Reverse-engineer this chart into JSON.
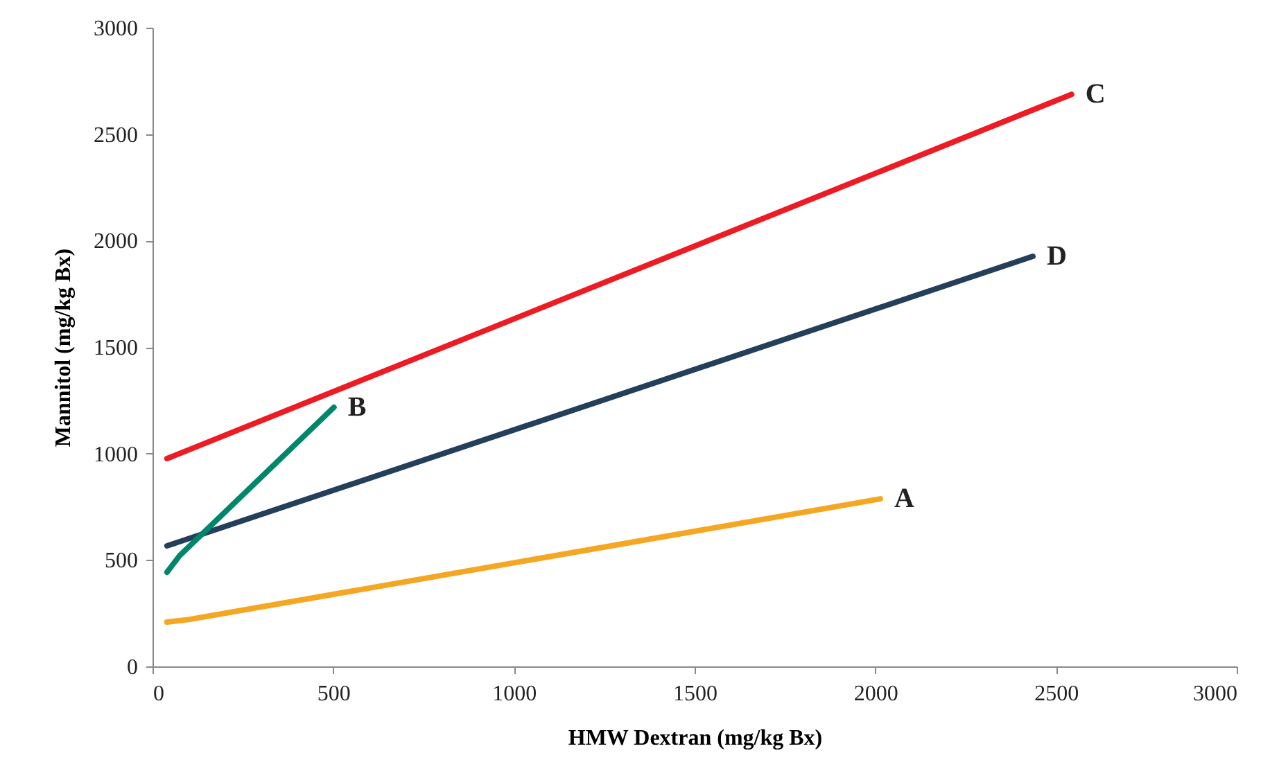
{
  "chart_data": {
    "type": "line",
    "xlabel": "HMW Dextran (mg/kg Bx)",
    "ylabel": "Mannitol (mg/kg Bx)",
    "xlim": [
      0,
      3000
    ],
    "xticks": [
      0,
      500,
      1000,
      1500,
      2000,
      2500,
      3000
    ],
    "ylim": [
      0,
      3000
    ],
    "yticks": [
      0,
      500,
      1000,
      1500,
      2000,
      2500,
      3000
    ],
    "grid": false,
    "marker": "none",
    "line_style": "solid",
    "series": [
      {
        "name": "C",
        "color": "#ed1c24",
        "x": [
          40,
          2543
        ],
        "values": [
          976,
          2687
        ]
      },
      {
        "name": "D",
        "color": "#243f5a",
        "x": [
          40,
          2436
        ],
        "values": [
          566,
          1926
        ]
      },
      {
        "name": "A",
        "color": "#f5a623",
        "x": [
          40,
          100,
          2014
        ],
        "values": [
          208,
          220,
          787
        ]
      },
      {
        "name": "B",
        "color": "#00876b",
        "x": [
          40,
          75,
          502
        ],
        "values": [
          442,
          520,
          1217
        ]
      }
    ]
  }
}
